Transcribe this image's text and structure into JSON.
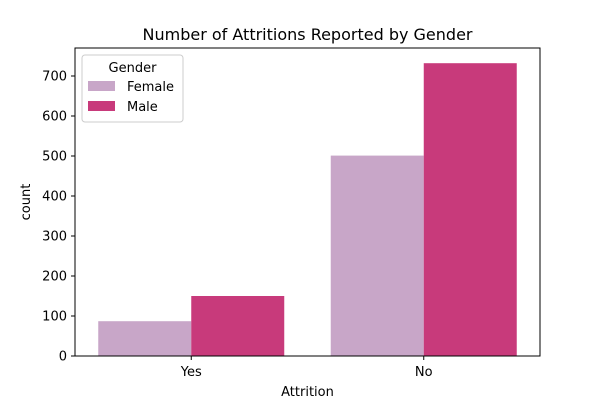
{
  "chart_data": {
    "type": "bar",
    "title": "Number of Attritions Reported by Gender",
    "xlabel": "Attrition",
    "ylabel": "count",
    "categories": [
      "Yes",
      "No"
    ],
    "series": [
      {
        "name": "Female",
        "values": [
          87,
          501
        ],
        "color": "#c8a6c8"
      },
      {
        "name": "Male",
        "values": [
          150,
          732
        ],
        "color": "#c83a7b"
      }
    ],
    "ylim": [
      0,
      770
    ],
    "yticks": [
      "0",
      "100",
      "200",
      "300",
      "400",
      "500",
      "600",
      "700"
    ],
    "legend": {
      "title": "Gender",
      "placement": "top-left"
    },
    "grid": false
  }
}
